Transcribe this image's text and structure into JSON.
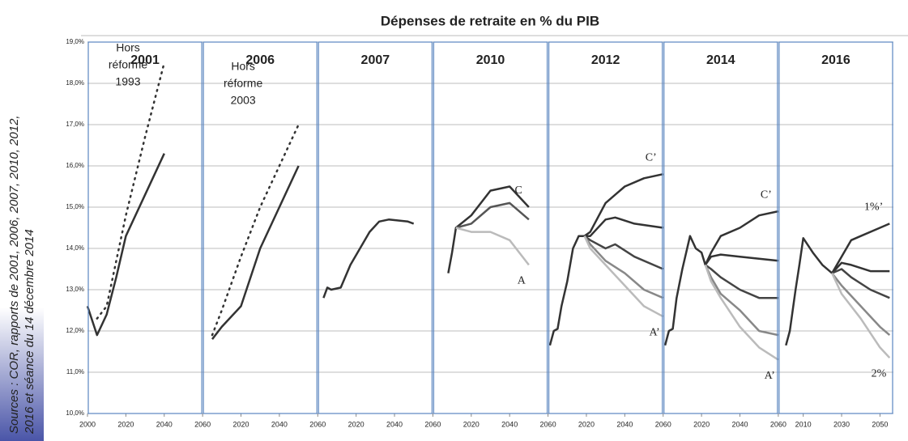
{
  "title": "Dépenses de retraite en % du PIB",
  "source": [
    "Sources : COR, rapports de 2001, 2006, 2007, 2010, 2012,",
    "2016 et séance du 14 décembre 2014"
  ],
  "ylim": [
    10,
    19
  ],
  "yticks": [
    {
      "value": 10,
      "label": "10,0%"
    },
    {
      "value": 11,
      "label": "11,0%"
    },
    {
      "value": 12,
      "label": "12,0%"
    },
    {
      "value": 13,
      "label": "13,0%"
    },
    {
      "value": 14,
      "label": "14,0%"
    },
    {
      "value": 15,
      "label": "15,0%"
    },
    {
      "value": 16,
      "label": "16,0%"
    },
    {
      "value": 17,
      "label": "17,0%"
    },
    {
      "value": 18,
      "label": "18,0%"
    },
    {
      "value": 19,
      "label": "19,0%"
    }
  ],
  "grid": true,
  "chart_data": [
    {
      "type": "line",
      "title": "2001",
      "xlim": [
        2000,
        2060
      ],
      "xticks": [
        2000,
        2020,
        2040,
        2060
      ],
      "annotation": [
        "Hors",
        "réforme",
        "1993"
      ],
      "series": [
        {
          "color": "#333333",
          "style": "dotted",
          "x": [
            2005,
            2010,
            2020,
            2030,
            2040
          ],
          "values": [
            12.3,
            12.6,
            14.8,
            16.7,
            18.5
          ]
        },
        {
          "color": "#333333",
          "x": [
            2000,
            2005,
            2010,
            2015,
            2020,
            2030,
            2040
          ],
          "values": [
            12.6,
            11.9,
            12.4,
            13.3,
            14.3,
            15.3,
            16.3
          ]
        }
      ]
    },
    {
      "type": "line",
      "title": "2006",
      "xlim": [
        2000,
        2060
      ],
      "xticks": [
        2020,
        2040,
        2060
      ],
      "annotation": [
        "Hors",
        "réforme",
        "2003"
      ],
      "series": [
        {
          "color": "#333333",
          "style": "dotted",
          "x": [
            2005,
            2010,
            2020,
            2030,
            2040,
            2050
          ],
          "values": [
            11.9,
            12.5,
            13.8,
            15.0,
            16.0,
            17.0
          ]
        },
        {
          "color": "#333333",
          "x": [
            2005,
            2010,
            2020,
            2030,
            2040,
            2050
          ],
          "values": [
            11.8,
            12.1,
            12.6,
            14.0,
            15.0,
            16.0
          ]
        }
      ]
    },
    {
      "type": "line",
      "title": "2007",
      "xlim": [
        2000,
        2060
      ],
      "xticks": [
        2020,
        2040,
        2060
      ],
      "series": [
        {
          "color": "#333333",
          "x": [
            2003,
            2005,
            2007,
            2012,
            2017,
            2027,
            2032,
            2037,
            2047,
            2050
          ],
          "values": [
            12.8,
            13.05,
            13.0,
            13.05,
            13.6,
            14.4,
            14.65,
            14.7,
            14.65,
            14.6
          ]
        }
      ]
    },
    {
      "type": "line",
      "title": "2010",
      "xlim": [
        2000,
        2060
      ],
      "xticks": [
        2020,
        2040,
        2060
      ],
      "series": [
        {
          "name": "C",
          "color": "#333333",
          "x": [
            2008,
            2010,
            2012,
            2020,
            2030,
            2040,
            2050
          ],
          "values": [
            13.4,
            13.9,
            14.5,
            14.8,
            15.4,
            15.5,
            15.0
          ]
        },
        {
          "color": "#555555",
          "x": [
            2012,
            2020,
            2030,
            2040,
            2050
          ],
          "values": [
            14.5,
            14.6,
            15.0,
            15.1,
            14.7
          ]
        },
        {
          "name": "A",
          "color": "#bbbbbb",
          "x": [
            2012,
            2020,
            2030,
            2040,
            2050
          ],
          "values": [
            14.5,
            14.4,
            14.4,
            14.2,
            13.6
          ]
        }
      ]
    },
    {
      "type": "line",
      "title": "2012",
      "xlim": [
        2000,
        2060
      ],
      "xticks": [
        2020,
        2040,
        2060
      ],
      "series": [
        {
          "name": "C’",
          "color": "#333333",
          "x": [
            2001,
            2003,
            2005,
            2007,
            2010,
            2013,
            2016,
            2019,
            2022,
            2030,
            2040,
            2050,
            2060
          ],
          "values": [
            11.65,
            12.0,
            12.05,
            12.6,
            13.2,
            14.0,
            14.3,
            14.3,
            14.4,
            15.1,
            15.5,
            15.7,
            15.8
          ]
        },
        {
          "color": "#333333",
          "x": [
            2019,
            2022,
            2030,
            2035,
            2045,
            2060
          ],
          "values": [
            14.3,
            14.3,
            14.7,
            14.75,
            14.6,
            14.5
          ]
        },
        {
          "color": "#444444",
          "x": [
            2019,
            2022,
            2030,
            2035,
            2045,
            2060
          ],
          "values": [
            14.3,
            14.2,
            14.0,
            14.1,
            13.8,
            13.5
          ]
        },
        {
          "color": "#888888",
          "x": [
            2019,
            2022,
            2030,
            2040,
            2050,
            2060
          ],
          "values": [
            14.3,
            14.1,
            13.7,
            13.4,
            13.0,
            12.8
          ]
        },
        {
          "name": "A’",
          "color": "#bbbbbb",
          "x": [
            2019,
            2022,
            2030,
            2040,
            2050,
            2060
          ],
          "values": [
            14.3,
            14.0,
            13.6,
            13.1,
            12.6,
            12.35
          ]
        }
      ]
    },
    {
      "type": "line",
      "title": "2014",
      "xlim": [
        2000,
        2060
      ],
      "xticks": [
        2020,
        2040,
        2060
      ],
      "series": [
        {
          "name": "C’",
          "color": "#333333",
          "x": [
            2001,
            2003,
            2005,
            2007,
            2010,
            2014,
            2017,
            2020,
            2022,
            2025,
            2030,
            2040,
            2050,
            2060
          ],
          "values": [
            11.65,
            12.0,
            12.05,
            12.8,
            13.5,
            14.3,
            14.0,
            13.9,
            13.6,
            13.9,
            14.3,
            14.5,
            14.8,
            14.9
          ]
        },
        {
          "color": "#333333",
          "x": [
            2022,
            2025,
            2030,
            2040,
            2060
          ],
          "values": [
            13.6,
            13.8,
            13.85,
            13.8,
            13.7
          ]
        },
        {
          "color": "#444444",
          "x": [
            2022,
            2025,
            2030,
            2040,
            2050,
            2060
          ],
          "values": [
            13.6,
            13.5,
            13.3,
            13.0,
            12.8,
            12.8
          ]
        },
        {
          "color": "#888888",
          "x": [
            2022,
            2025,
            2030,
            2040,
            2050,
            2060
          ],
          "values": [
            13.6,
            13.3,
            12.9,
            12.5,
            12.0,
            11.9
          ]
        },
        {
          "name": "A’",
          "color": "#bbbbbb",
          "x": [
            2022,
            2025,
            2030,
            2040,
            2050,
            2060
          ],
          "values": [
            13.6,
            13.2,
            12.8,
            12.1,
            11.6,
            11.3
          ]
        }
      ]
    },
    {
      "type": "line",
      "title": "2016",
      "xlim": [
        1997,
        2057
      ],
      "xticks": [
        2010,
        2030,
        2050
      ],
      "series": [
        {
          "name": "1%’",
          "color": "#333333",
          "x": [
            2001,
            2003,
            2006,
            2008,
            2010,
            2015,
            2020,
            2025,
            2030,
            2035,
            2040,
            2050,
            2055
          ],
          "values": [
            11.65,
            12.0,
            13.0,
            13.6,
            14.25,
            13.9,
            13.6,
            13.4,
            13.8,
            14.2,
            14.3,
            14.5,
            14.6
          ]
        },
        {
          "color": "#333333",
          "x": [
            2025,
            2030,
            2035,
            2045,
            2055
          ],
          "values": [
            13.4,
            13.65,
            13.6,
            13.45,
            13.45
          ]
        },
        {
          "color": "#444444",
          "x": [
            2025,
            2030,
            2035,
            2045,
            2055
          ],
          "values": [
            13.4,
            13.5,
            13.3,
            13.0,
            12.8
          ]
        },
        {
          "color": "#888888",
          "x": [
            2025,
            2030,
            2040,
            2050,
            2055
          ],
          "values": [
            13.4,
            13.1,
            12.6,
            12.1,
            11.9
          ]
        },
        {
          "name": "2%",
          "color": "#bbbbbb",
          "x": [
            2025,
            2030,
            2040,
            2050,
            2055
          ],
          "values": [
            13.4,
            12.9,
            12.3,
            11.6,
            11.35
          ]
        }
      ]
    }
  ]
}
